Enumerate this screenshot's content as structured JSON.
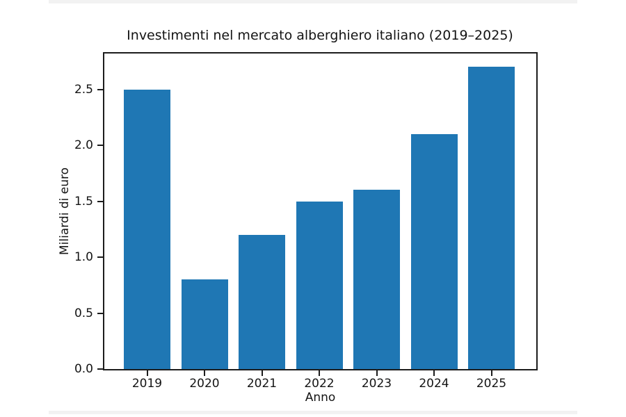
{
  "chart_data": {
    "type": "bar",
    "title": "Investimenti nel mercato alberghiero italiano (2019–2025)",
    "xlabel": "Anno",
    "ylabel": "Miliardi di euro",
    "categories": [
      "2019",
      "2020",
      "2021",
      "2022",
      "2023",
      "2024",
      "2025"
    ],
    "values": [
      2.5,
      0.8,
      1.2,
      1.5,
      1.6,
      2.1,
      2.7
    ],
    "ylim": [
      0,
      2.82
    ],
    "yticks": [
      0.0,
      0.5,
      1.0,
      1.5,
      2.0,
      2.5
    ],
    "ytick_labels": [
      "0.0",
      "0.5",
      "1.0",
      "1.5",
      "2.0",
      "2.5"
    ],
    "grid": false,
    "legend": null,
    "bar_color": "#1f77b4",
    "spine_color": "#1c1c1c",
    "background_color": "#ffffff"
  }
}
